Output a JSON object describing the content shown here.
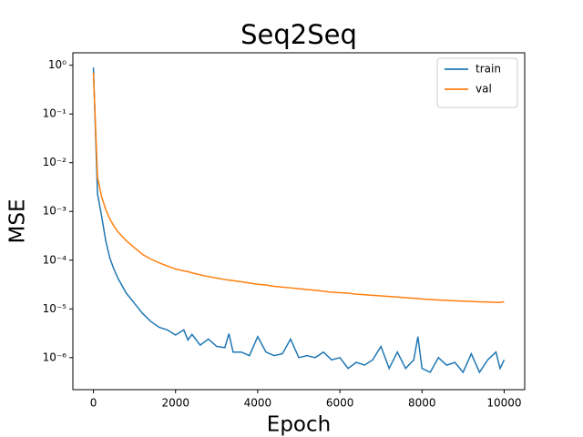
{
  "chart_data": {
    "type": "line",
    "title": "Seq2Seq",
    "x_label": "Epoch",
    "y_label": "MSE",
    "x": [
      0,
      100,
      200,
      300,
      400,
      500,
      600,
      800,
      1000,
      1200,
      1400,
      1600,
      1800,
      2000,
      2200,
      2300,
      2400,
      2600,
      2800,
      3000,
      3200,
      3300,
      3400,
      3600,
      3800,
      4000,
      4200,
      4400,
      4600,
      4800,
      5000,
      5200,
      5400,
      5600,
      5800,
      6000,
      6200,
      6400,
      6600,
      6800,
      7000,
      7200,
      7400,
      7600,
      7800,
      7900,
      8000,
      8200,
      8400,
      8600,
      8800,
      9000,
      9200,
      9400,
      9600,
      9800,
      9900,
      10000
    ],
    "series": [
      {
        "name": "train",
        "color": "#1f77b4",
        "values": [
          0.9,
          0.0023,
          0.0008,
          0.00025,
          0.00011,
          6.5e-05,
          4.2e-05,
          2.1e-05,
          1.3e-05,
          8e-06,
          5.5e-06,
          4.2e-06,
          3.7e-06,
          2.9e-06,
          3.7e-06,
          2.3e-06,
          3e-06,
          1.8e-06,
          2.4e-06,
          1.7e-06,
          1.6e-06,
          3.1e-06,
          1.3e-06,
          1.3e-06,
          1.1e-06,
          2.7e-06,
          1.3e-06,
          1.1e-06,
          1.2e-06,
          2.4e-06,
          1e-06,
          1.1e-06,
          1e-06,
          1.3e-06,
          9e-07,
          1e-06,
          6e-07,
          8e-07,
          7e-07,
          9e-07,
          1.7e-06,
          6e-07,
          1.3e-06,
          6e-07,
          9e-07,
          2.7e-06,
          6e-07,
          5e-07,
          1e-06,
          7e-07,
          8e-07,
          5e-07,
          1.2e-06,
          5e-07,
          9e-07,
          1.3e-06,
          6e-07,
          9e-07
        ]
      },
      {
        "name": "val",
        "color": "#ff7f0e",
        "values": [
          0.7,
          0.005,
          0.002,
          0.0011,
          0.0007,
          0.0005,
          0.00038,
          0.00025,
          0.00018,
          0.00013,
          0.000105,
          8.8e-05,
          7.6e-05,
          6.6e-05,
          6e-05,
          5.8e-05,
          5.5e-05,
          5e-05,
          4.6e-05,
          4.3e-05,
          4e-05,
          3.9e-05,
          3.8e-05,
          3.6e-05,
          3.4e-05,
          3.2e-05,
          3.1e-05,
          2.9e-05,
          2.8e-05,
          2.7e-05,
          2.6e-05,
          2.5e-05,
          2.4e-05,
          2.3e-05,
          2.2e-05,
          2.15e-05,
          2.1e-05,
          2e-05,
          1.95e-05,
          1.9e-05,
          1.85e-05,
          1.8e-05,
          1.75e-05,
          1.7e-05,
          1.65e-05,
          1.63e-05,
          1.6e-05,
          1.56e-05,
          1.52e-05,
          1.5e-05,
          1.47e-05,
          1.44e-05,
          1.42e-05,
          1.4e-05,
          1.38e-05,
          1.36e-05,
          1.36e-05,
          1.4e-05
        ]
      }
    ],
    "xlim": [
      -500,
      10500
    ],
    "xticks": [
      0,
      2000,
      4000,
      6000,
      8000,
      10000
    ],
    "ylim": [
      2.2e-07,
      1.8
    ],
    "y_scale": "log",
    "yticks": [
      {
        "value": 1,
        "label": "10⁰"
      },
      {
        "value": 0.1,
        "label": "10⁻¹"
      },
      {
        "value": 0.01,
        "label": "10⁻²"
      },
      {
        "value": 0.001,
        "label": "10⁻³"
      },
      {
        "value": 0.0001,
        "label": "10⁻⁴"
      },
      {
        "value": 1e-05,
        "label": "10⁻⁵"
      },
      {
        "value": 1e-06,
        "label": "10⁻⁶"
      }
    ],
    "legend": "upper right",
    "grid": false
  }
}
